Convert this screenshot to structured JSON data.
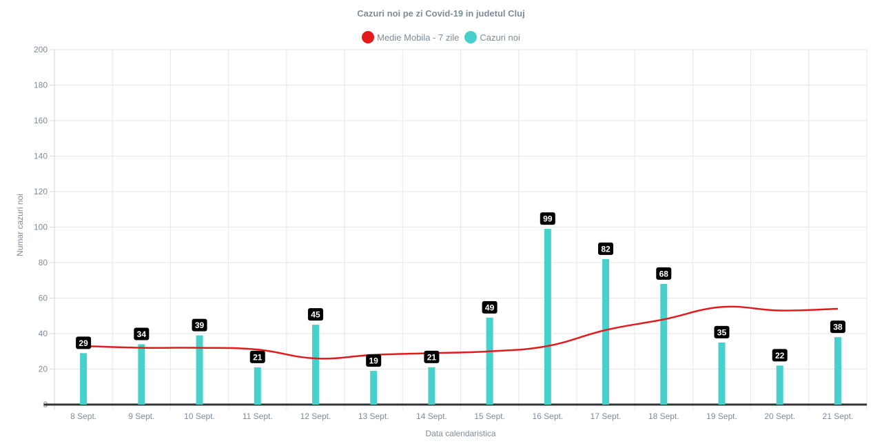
{
  "chart_data": {
    "type": "bar",
    "title": "Cazuri noi pe zi Covid-19 in judetul Cluj",
    "xlabel": "Data calendaristica",
    "ylabel": "Numar cazuri noi",
    "ylim": [
      0,
      200
    ],
    "yticks": [
      0,
      20,
      40,
      60,
      80,
      100,
      120,
      140,
      160,
      180,
      200
    ],
    "grid": true,
    "legend_position": "top-center",
    "categories": [
      "8 Sept.",
      "9 Sept.",
      "10 Sept.",
      "11 Sept.",
      "12 Sept.",
      "13 Sept.",
      "14 Sept.",
      "15 Sept.",
      "16 Sept.",
      "17 Sept.",
      "18 Sept.",
      "19 Sept.",
      "20 Sept.",
      "21 Sept."
    ],
    "series": [
      {
        "name": "Medie Mobila - 7 zile",
        "type": "line",
        "color": "#e31a1c",
        "values": [
          33,
          32,
          32,
          31,
          26,
          28,
          29,
          30,
          33,
          42,
          48,
          55,
          53,
          54
        ]
      },
      {
        "name": "Cazuri noi",
        "type": "bar",
        "color": "#48d1cc",
        "values": [
          29,
          34,
          39,
          21,
          45,
          19,
          21,
          49,
          99,
          82,
          68,
          35,
          22,
          38
        ]
      }
    ]
  }
}
